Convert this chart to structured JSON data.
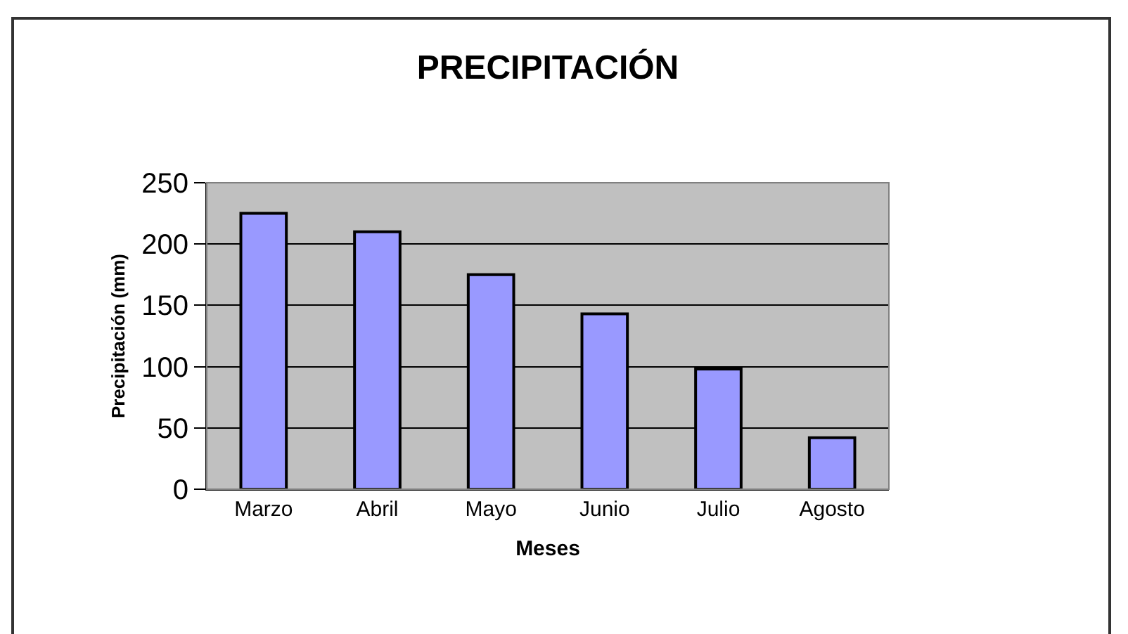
{
  "chart_data": {
    "type": "bar",
    "title": "PRECIPITACIÓN",
    "xlabel": "Meses",
    "ylabel": "Precipitación (mm)",
    "categories": [
      "Marzo",
      "Abril",
      "Mayo",
      "Junio",
      "Julio",
      "Agosto"
    ],
    "values": [
      225,
      210,
      175,
      143,
      98,
      42
    ],
    "color": "#9999ff",
    "ylim": [
      0,
      250
    ],
    "yticks": [
      0,
      50,
      100,
      150,
      200,
      250
    ],
    "grid": "y",
    "legend": false
  }
}
